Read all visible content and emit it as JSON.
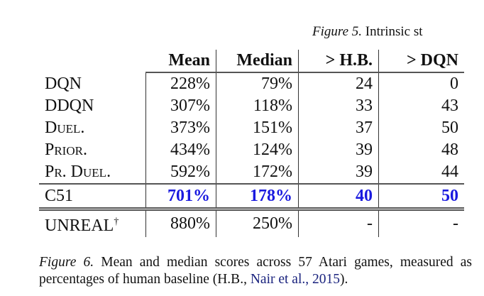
{
  "header_fragment": {
    "label": "Figure 5.",
    "text": "Intrinsic st"
  },
  "table": {
    "columns": [
      "",
      "Mean",
      "Median",
      "> H.B.",
      "> DQN"
    ],
    "rows": [
      {
        "name": "DQN",
        "values": [
          "228%",
          "79%",
          "24",
          "0"
        ]
      },
      {
        "name": "DDQN",
        "values": [
          "307%",
          "118%",
          "33",
          "43"
        ]
      },
      {
        "name": "Duel.",
        "values": [
          "373%",
          "151%",
          "37",
          "50"
        ]
      },
      {
        "name": "Prior.",
        "values": [
          "434%",
          "124%",
          "39",
          "48"
        ]
      },
      {
        "name": "Pr. Duel.",
        "values": [
          "592%",
          "172%",
          "39",
          "44"
        ]
      }
    ],
    "highlight_row": {
      "name": "C51",
      "values": [
        "701%",
        "178%",
        "40",
        "50"
      ]
    },
    "extra_row": {
      "name": "UNREAL",
      "marker": "†",
      "values": [
        "880%",
        "250%",
        "-",
        "-"
      ]
    }
  },
  "caption": {
    "label": "Figure 6.",
    "text_before": " Mean and median scores across 57 Atari games, measured as percentages of human baseline (H.B., ",
    "citation": "Nair et al., 2015",
    "text_after": ")."
  },
  "colors": {
    "highlight": "#1a1adf",
    "citation": "#1a237e"
  }
}
